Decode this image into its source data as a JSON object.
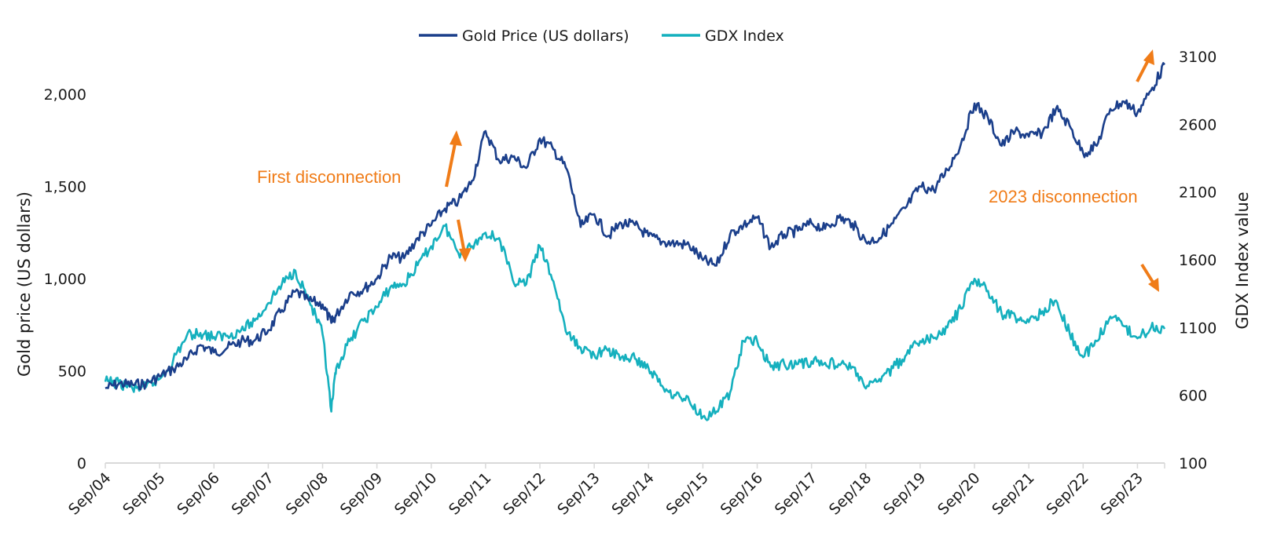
{
  "chart_data": {
    "type": "line",
    "title": "",
    "xlabel": "",
    "ylabel": "Gold price (US dollars)",
    "y2label": "GDX Index value",
    "x_tick_labels": [
      "Sep/04",
      "Sep/05",
      "Sep/06",
      "Sep/07",
      "Sep/08",
      "Sep/09",
      "Sep/10",
      "Sep/11",
      "Sep/12",
      "Sep/13",
      "Sep/14",
      "Sep/15",
      "Sep/16",
      "Sep/17",
      "Sep/18",
      "Sep/19",
      "Sep/20",
      "Sep/21",
      "Sep/22",
      "Sep/23"
    ],
    "x_range": [
      2004.67,
      2024.17
    ],
    "ylim": [
      0,
      2000
    ],
    "y_ticks": [
      0,
      500,
      1000,
      1500,
      2000
    ],
    "y_tick_labels": [
      "0",
      "500",
      "1,000",
      "1,500",
      "2,000"
    ],
    "y2lim": [
      100,
      3100
    ],
    "y2_ticks": [
      100,
      600,
      1100,
      1600,
      2100,
      2600,
      3100
    ],
    "y2_tick_labels": [
      "100",
      "600",
      "1100",
      "1600",
      "2100",
      "2600",
      "3100"
    ],
    "grid": false,
    "legend_position": "top-center",
    "x": [
      2004.67,
      2004.92,
      2005.17,
      2005.42,
      2005.67,
      2005.92,
      2006.17,
      2006.42,
      2006.67,
      2006.92,
      2007.17,
      2007.42,
      2007.67,
      2007.92,
      2008.17,
      2008.42,
      2008.67,
      2008.83,
      2008.92,
      2009.17,
      2009.42,
      2009.67,
      2009.92,
      2010.17,
      2010.42,
      2010.67,
      2010.92,
      2011.17,
      2011.42,
      2011.67,
      2011.92,
      2012.17,
      2012.42,
      2012.67,
      2012.92,
      2013.17,
      2013.42,
      2013.67,
      2013.92,
      2014.17,
      2014.42,
      2014.67,
      2014.92,
      2015.17,
      2015.42,
      2015.67,
      2015.92,
      2016.17,
      2016.42,
      2016.67,
      2016.92,
      2017.17,
      2017.42,
      2017.67,
      2017.92,
      2018.17,
      2018.42,
      2018.67,
      2018.92,
      2019.17,
      2019.42,
      2019.67,
      2019.92,
      2020.17,
      2020.42,
      2020.67,
      2020.92,
      2021.17,
      2021.42,
      2021.67,
      2021.92,
      2022.17,
      2022.42,
      2022.67,
      2022.92,
      2023.17,
      2023.42,
      2023.67,
      2023.92,
      2024.17
    ],
    "series": [
      {
        "name": "Gold Price (US dollars)",
        "axis": "left",
        "color": "#1b3f8b",
        "values": [
          405,
          430,
          425,
          430,
          470,
          510,
          560,
          640,
          600,
          625,
          660,
          665,
          720,
          830,
          930,
          880,
          860,
          760,
          800,
          920,
          940,
          1000,
          1120,
          1110,
          1220,
          1290,
          1380,
          1420,
          1530,
          1800,
          1640,
          1660,
          1600,
          1760,
          1700,
          1590,
          1280,
          1350,
          1230,
          1300,
          1290,
          1230,
          1200,
          1190,
          1180,
          1100,
          1070,
          1240,
          1290,
          1330,
          1170,
          1240,
          1260,
          1300,
          1270,
          1330,
          1300,
          1200,
          1220,
          1300,
          1390,
          1500,
          1480,
          1590,
          1730,
          1950,
          1870,
          1720,
          1800,
          1770,
          1790,
          1920,
          1830,
          1680,
          1720,
          1920,
          1960,
          1900,
          2020,
          2160
        ]
      },
      {
        "name": "GDX Index",
        "axis": "right",
        "color": "#15b0be",
        "values": [
          700,
          690,
          650,
          660,
          720,
          860,
          1040,
          1060,
          1030,
          1040,
          1080,
          1150,
          1280,
          1420,
          1520,
          1300,
          1050,
          480,
          800,
          1000,
          1150,
          1250,
          1400,
          1420,
          1560,
          1700,
          1850,
          1650,
          1700,
          1800,
          1760,
          1450,
          1420,
          1700,
          1440,
          1050,
          950,
          900,
          930,
          880,
          870,
          800,
          670,
          600,
          560,
          440,
          480,
          620,
          1000,
          1000,
          810,
          830,
          830,
          850,
          840,
          830,
          810,
          650,
          720,
          800,
          900,
          1000,
          1020,
          1100,
          1240,
          1460,
          1370,
          1200,
          1180,
          1140,
          1220,
          1300,
          1060,
          880,
          1000,
          1180,
          1110,
          1020,
          1100,
          1090
        ]
      }
    ],
    "annotations": [
      {
        "text": "First  disconnection",
        "color": "#f07c18",
        "near_x": 2010.67,
        "gold_arrow": "up",
        "gdx_arrow": "down"
      },
      {
        "text": "2023 disconnection",
        "color": "#f07c18",
        "near_x": 2023.9,
        "gold_arrow": "up",
        "gdx_arrow": "down"
      }
    ]
  },
  "legend": {
    "items": [
      {
        "label": "Gold Price (US dollars)",
        "color": "#1b3f8b"
      },
      {
        "label": "GDX Index",
        "color": "#15b0be"
      }
    ]
  },
  "colors": {
    "axis": "#d9d9d9",
    "text": "#1a1a1a",
    "annotation": "#f07c18"
  }
}
